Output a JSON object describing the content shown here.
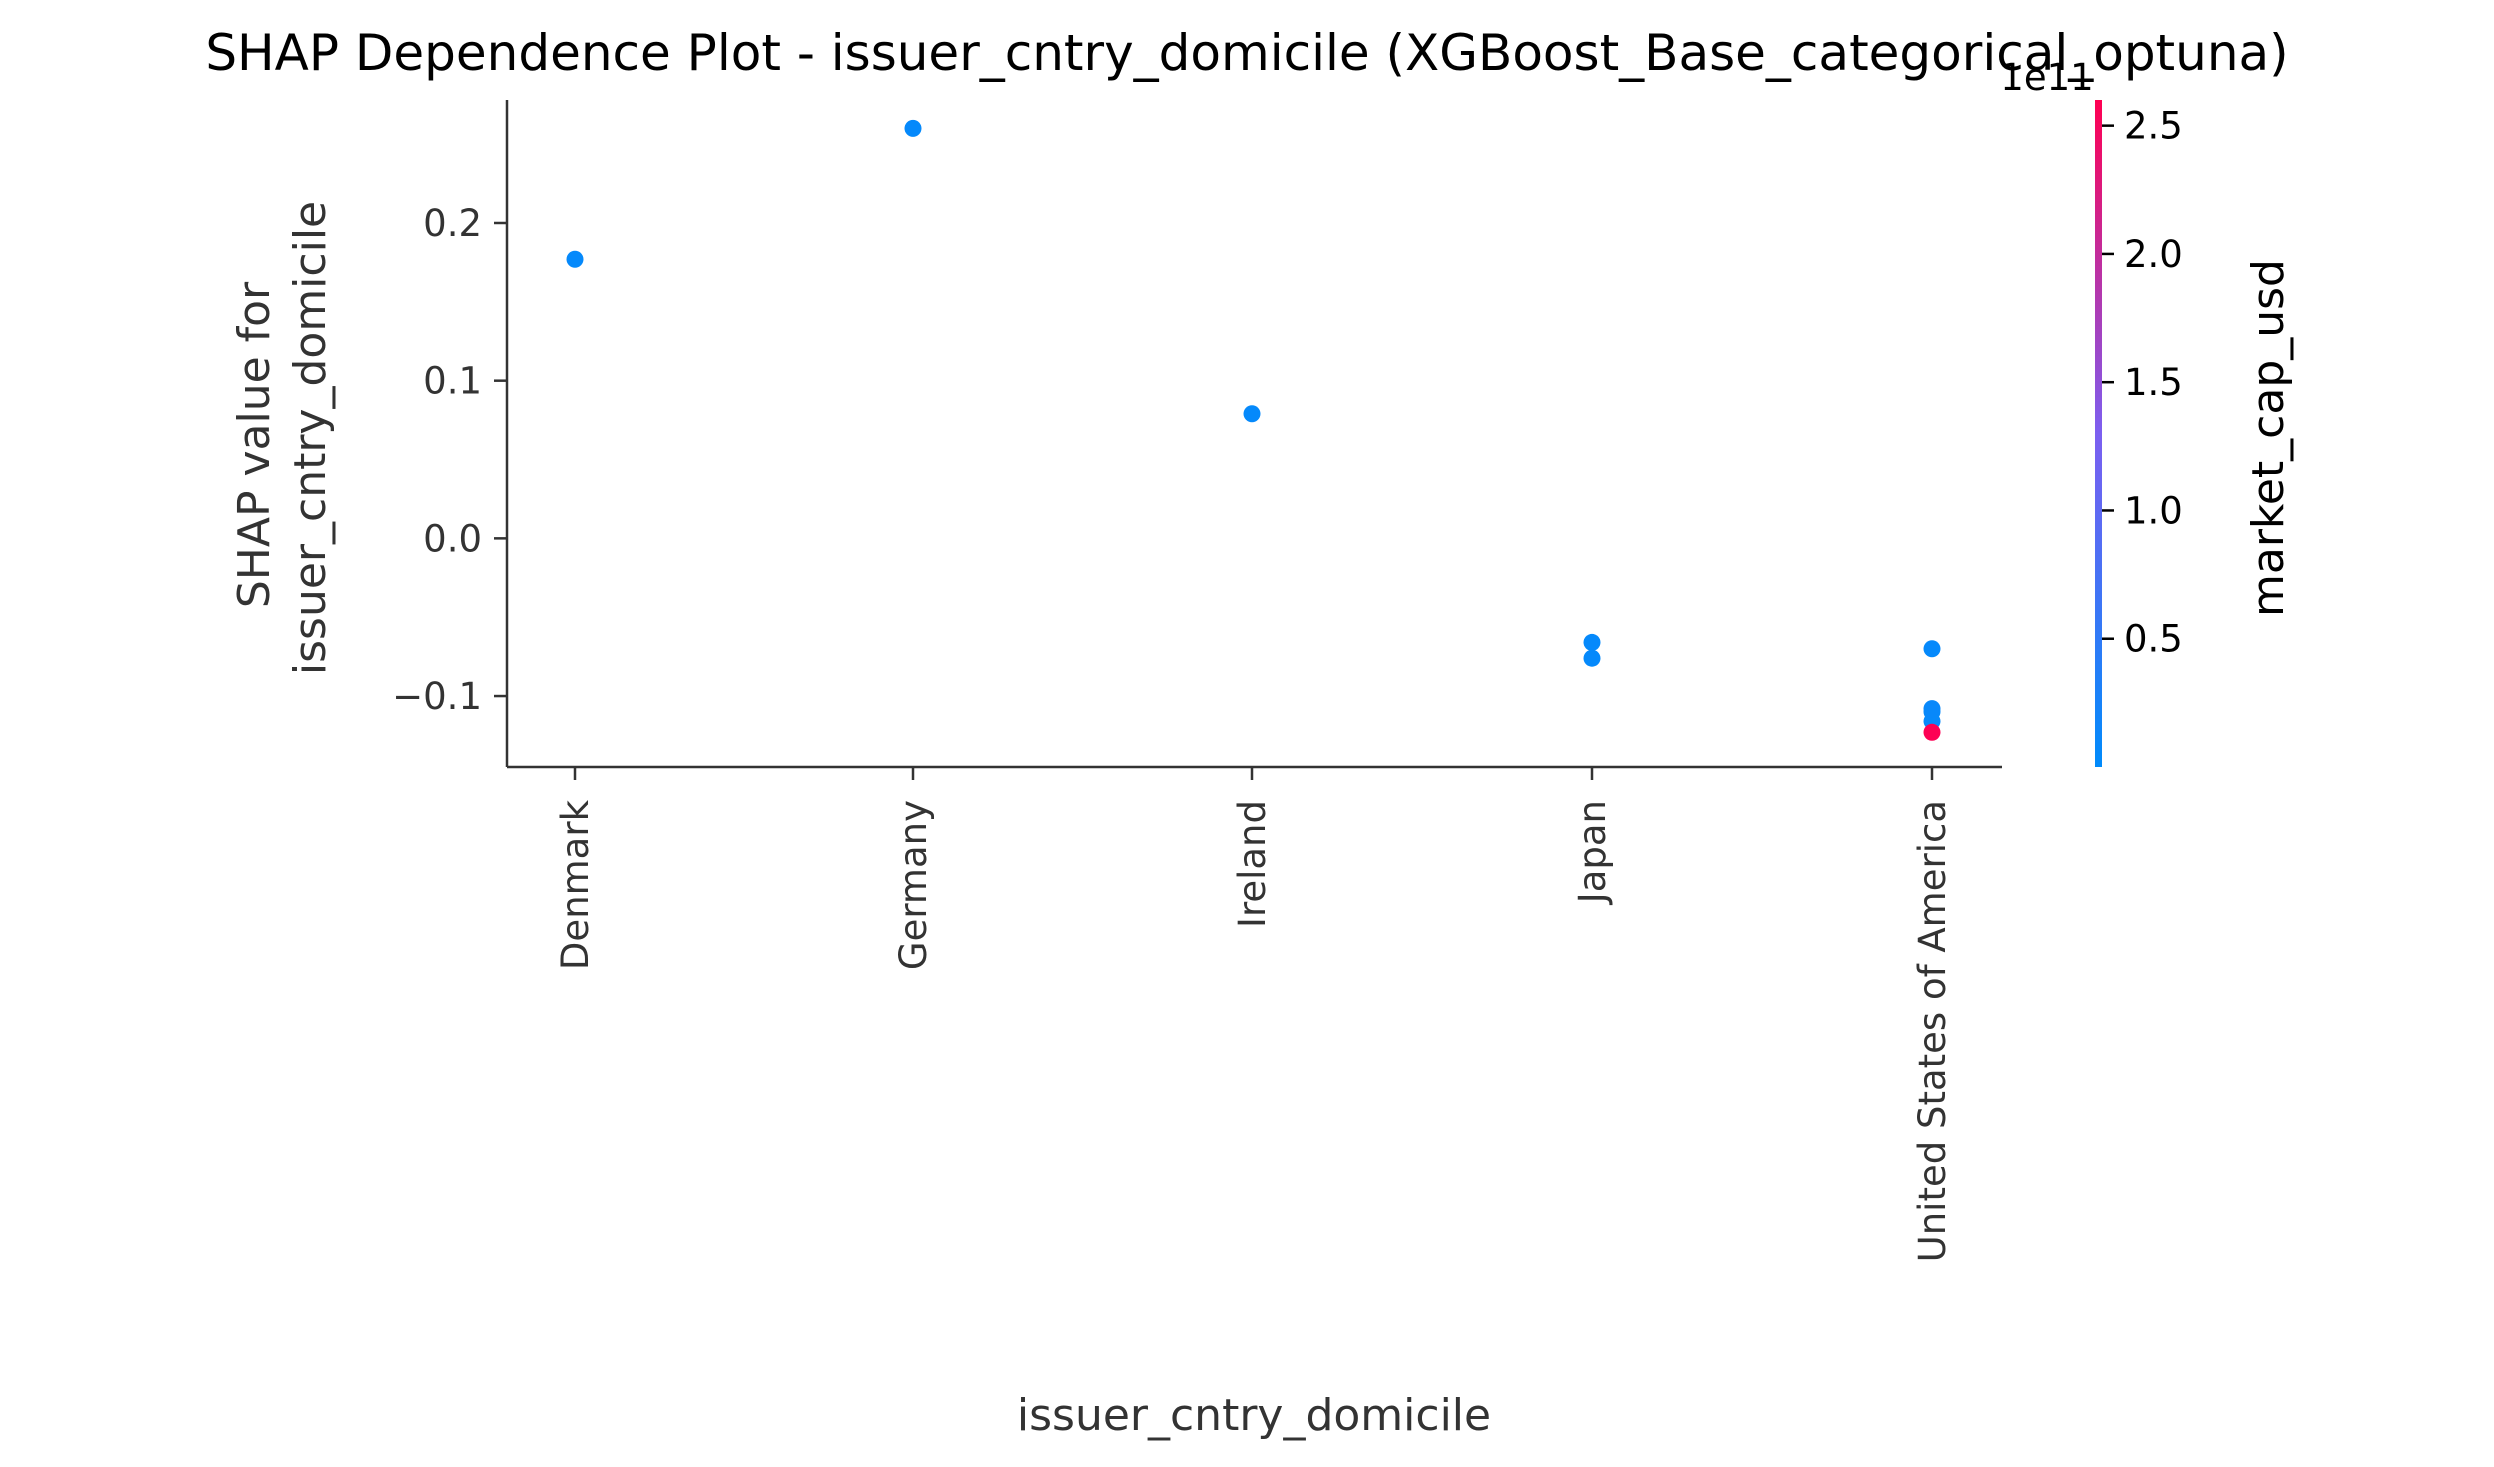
{
  "chart_data": {
    "type": "scatter",
    "title": "SHAP Dependence Plot - issuer_cntry_domicile (XGBoost_Base_categorical_optuna)",
    "xlabel": "issuer_cntry_domicile",
    "ylabel_lines": [
      "SHAP value for",
      "issuer_cntry_domicile"
    ],
    "categories": [
      "Denmark",
      "Germany",
      "Ireland",
      "Japan",
      "United States of America"
    ],
    "ylim": [
      -0.145,
      0.278
    ],
    "yticks": [
      -0.1,
      0.0,
      0.1,
      0.2
    ],
    "ytick_labels": [
      "−0.1",
      "0.0",
      "0.1",
      "0.2"
    ],
    "points": [
      {
        "category": "Denmark",
        "y": 0.177,
        "market_cap_usd": 0.05
      },
      {
        "category": "Germany",
        "y": 0.26,
        "market_cap_usd": 0.05
      },
      {
        "category": "Ireland",
        "y": 0.079,
        "market_cap_usd": 0.05
      },
      {
        "category": "Japan",
        "y": -0.066,
        "market_cap_usd": 0.05
      },
      {
        "category": "Japan",
        "y": -0.076,
        "market_cap_usd": 0.05
      },
      {
        "category": "United States of America",
        "y": -0.07,
        "market_cap_usd": 0.05
      },
      {
        "category": "United States of America",
        "y": -0.108,
        "market_cap_usd": 0.08
      },
      {
        "category": "United States of America",
        "y": -0.11,
        "market_cap_usd": 0.06
      },
      {
        "category": "United States of America",
        "y": -0.116,
        "market_cap_usd": 0.07
      },
      {
        "category": "United States of America",
        "y": -0.123,
        "market_cap_usd": 2.58
      }
    ],
    "colorbar": {
      "label": "market_cap_usd",
      "offset_text": "1e11",
      "range": [
        0.0,
        2.6
      ],
      "ticks": [
        0.5,
        1.0,
        1.5,
        2.0,
        2.5
      ],
      "tick_labels": [
        "0.5",
        "1.0",
        "1.5",
        "2.0",
        "2.5"
      ],
      "color_low": "#008bfb",
      "color_high": "#ff0052"
    },
    "grid": false,
    "legend": "none"
  }
}
